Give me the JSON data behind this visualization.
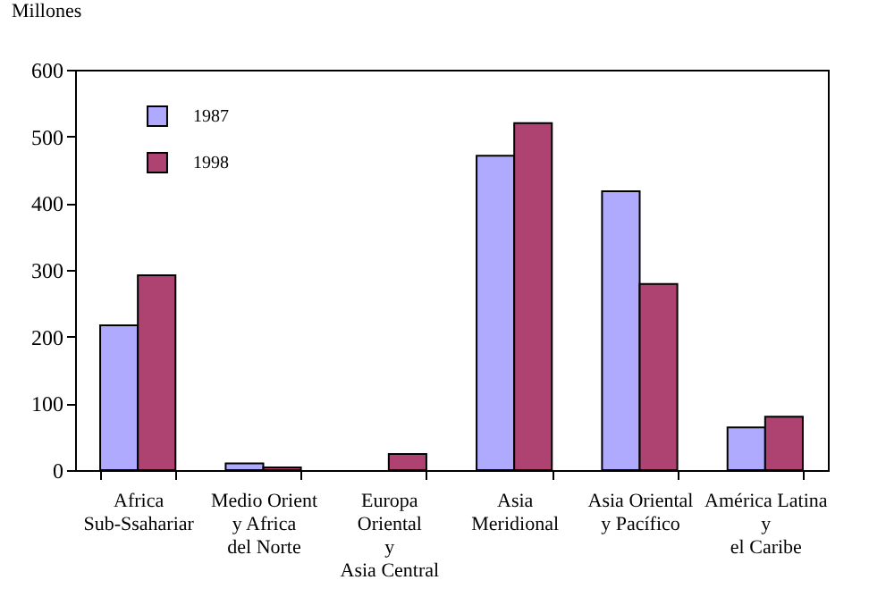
{
  "chart_data": {
    "type": "bar",
    "ylabel": "Millones",
    "categories": [
      "Africa\nSub-Ssahariar",
      "Medio Orient\ny Africa\ndel Norte",
      "Europa\nOriental\ny\nAsia Central",
      "Asia\nMeridional",
      "Asia Oriental\ny Pacífico",
      "América Latina\ny\nel Caribe"
    ],
    "series": [
      {
        "name": "1987",
        "color": "#b0aaff",
        "values": [
          217,
          10,
          null,
          471,
          418,
          64
        ]
      },
      {
        "name": "1998",
        "color": "#ae4270",
        "values": [
          292,
          4,
          24,
          520,
          279,
          80
        ]
      }
    ],
    "ylim": [
      0,
      600
    ],
    "yticks": [
      0,
      100,
      200,
      300,
      400,
      500,
      600
    ],
    "legend": "top left",
    "grid": false
  }
}
